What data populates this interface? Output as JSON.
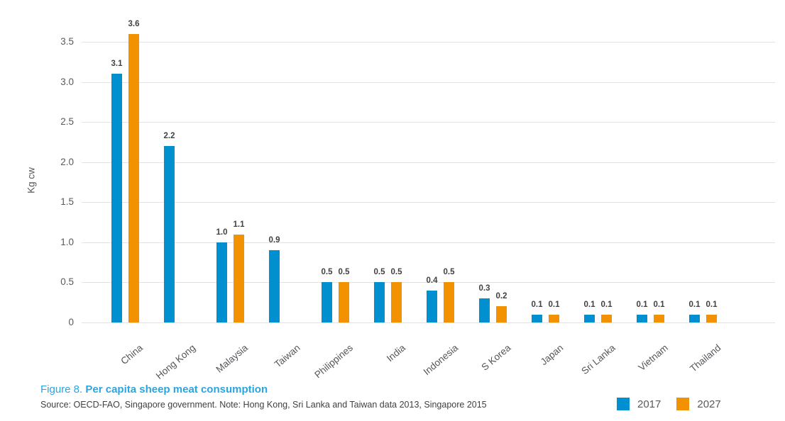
{
  "figure_caption": {
    "prefix": "Figure 8. ",
    "title": "Per capita sheep meat consumption",
    "source": "Source: OECD-FAO, Singapore government. Note: Hong Kong, Sri Lanka and Taiwan data 2013, Singapore 2015"
  },
  "legend": {
    "items": [
      {
        "label": "2017",
        "color": "#0090d0"
      },
      {
        "label": "2027",
        "color": "#f39200"
      }
    ]
  },
  "chart_data": {
    "type": "bar",
    "title": "Per capita sheep meat consumption",
    "xlabel": "",
    "ylabel": "Kg cw",
    "ylim": [
      0,
      3.5
    ],
    "yticks": [
      0,
      0.5,
      1.0,
      1.5,
      2.0,
      2.5,
      3.0,
      3.5
    ],
    "ytick_labels": [
      "0",
      "0.5",
      "1.0",
      "1.5",
      "2.0",
      "2.5",
      "3.0",
      "3.5"
    ],
    "grid": true,
    "legend_position": "bottom-right",
    "categories": [
      "China",
      "Hong Kong",
      "Malaysia",
      "Taiwan",
      "Philippines",
      "India",
      "Indonesia",
      "S Korea",
      "Japan",
      "Sri Lanka",
      "Vietnam",
      "Thailand"
    ],
    "series": [
      {
        "name": "2017",
        "color": "#0090d0",
        "values": [
          3.1,
          2.2,
          1.0,
          0.9,
          0.5,
          0.5,
          0.4,
          0.3,
          0.1,
          0.1,
          0.1,
          0.1
        ]
      },
      {
        "name": "2027",
        "color": "#f39200",
        "values": [
          3.6,
          null,
          1.1,
          null,
          0.5,
          0.5,
          0.5,
          0.2,
          0.1,
          0.1,
          0.1,
          0.1
        ]
      }
    ],
    "colors": {
      "grid": "#e2e2e2",
      "axis_text": "#58595b",
      "value_text": "#414042",
      "caption_accent": "#29a5e0"
    }
  }
}
